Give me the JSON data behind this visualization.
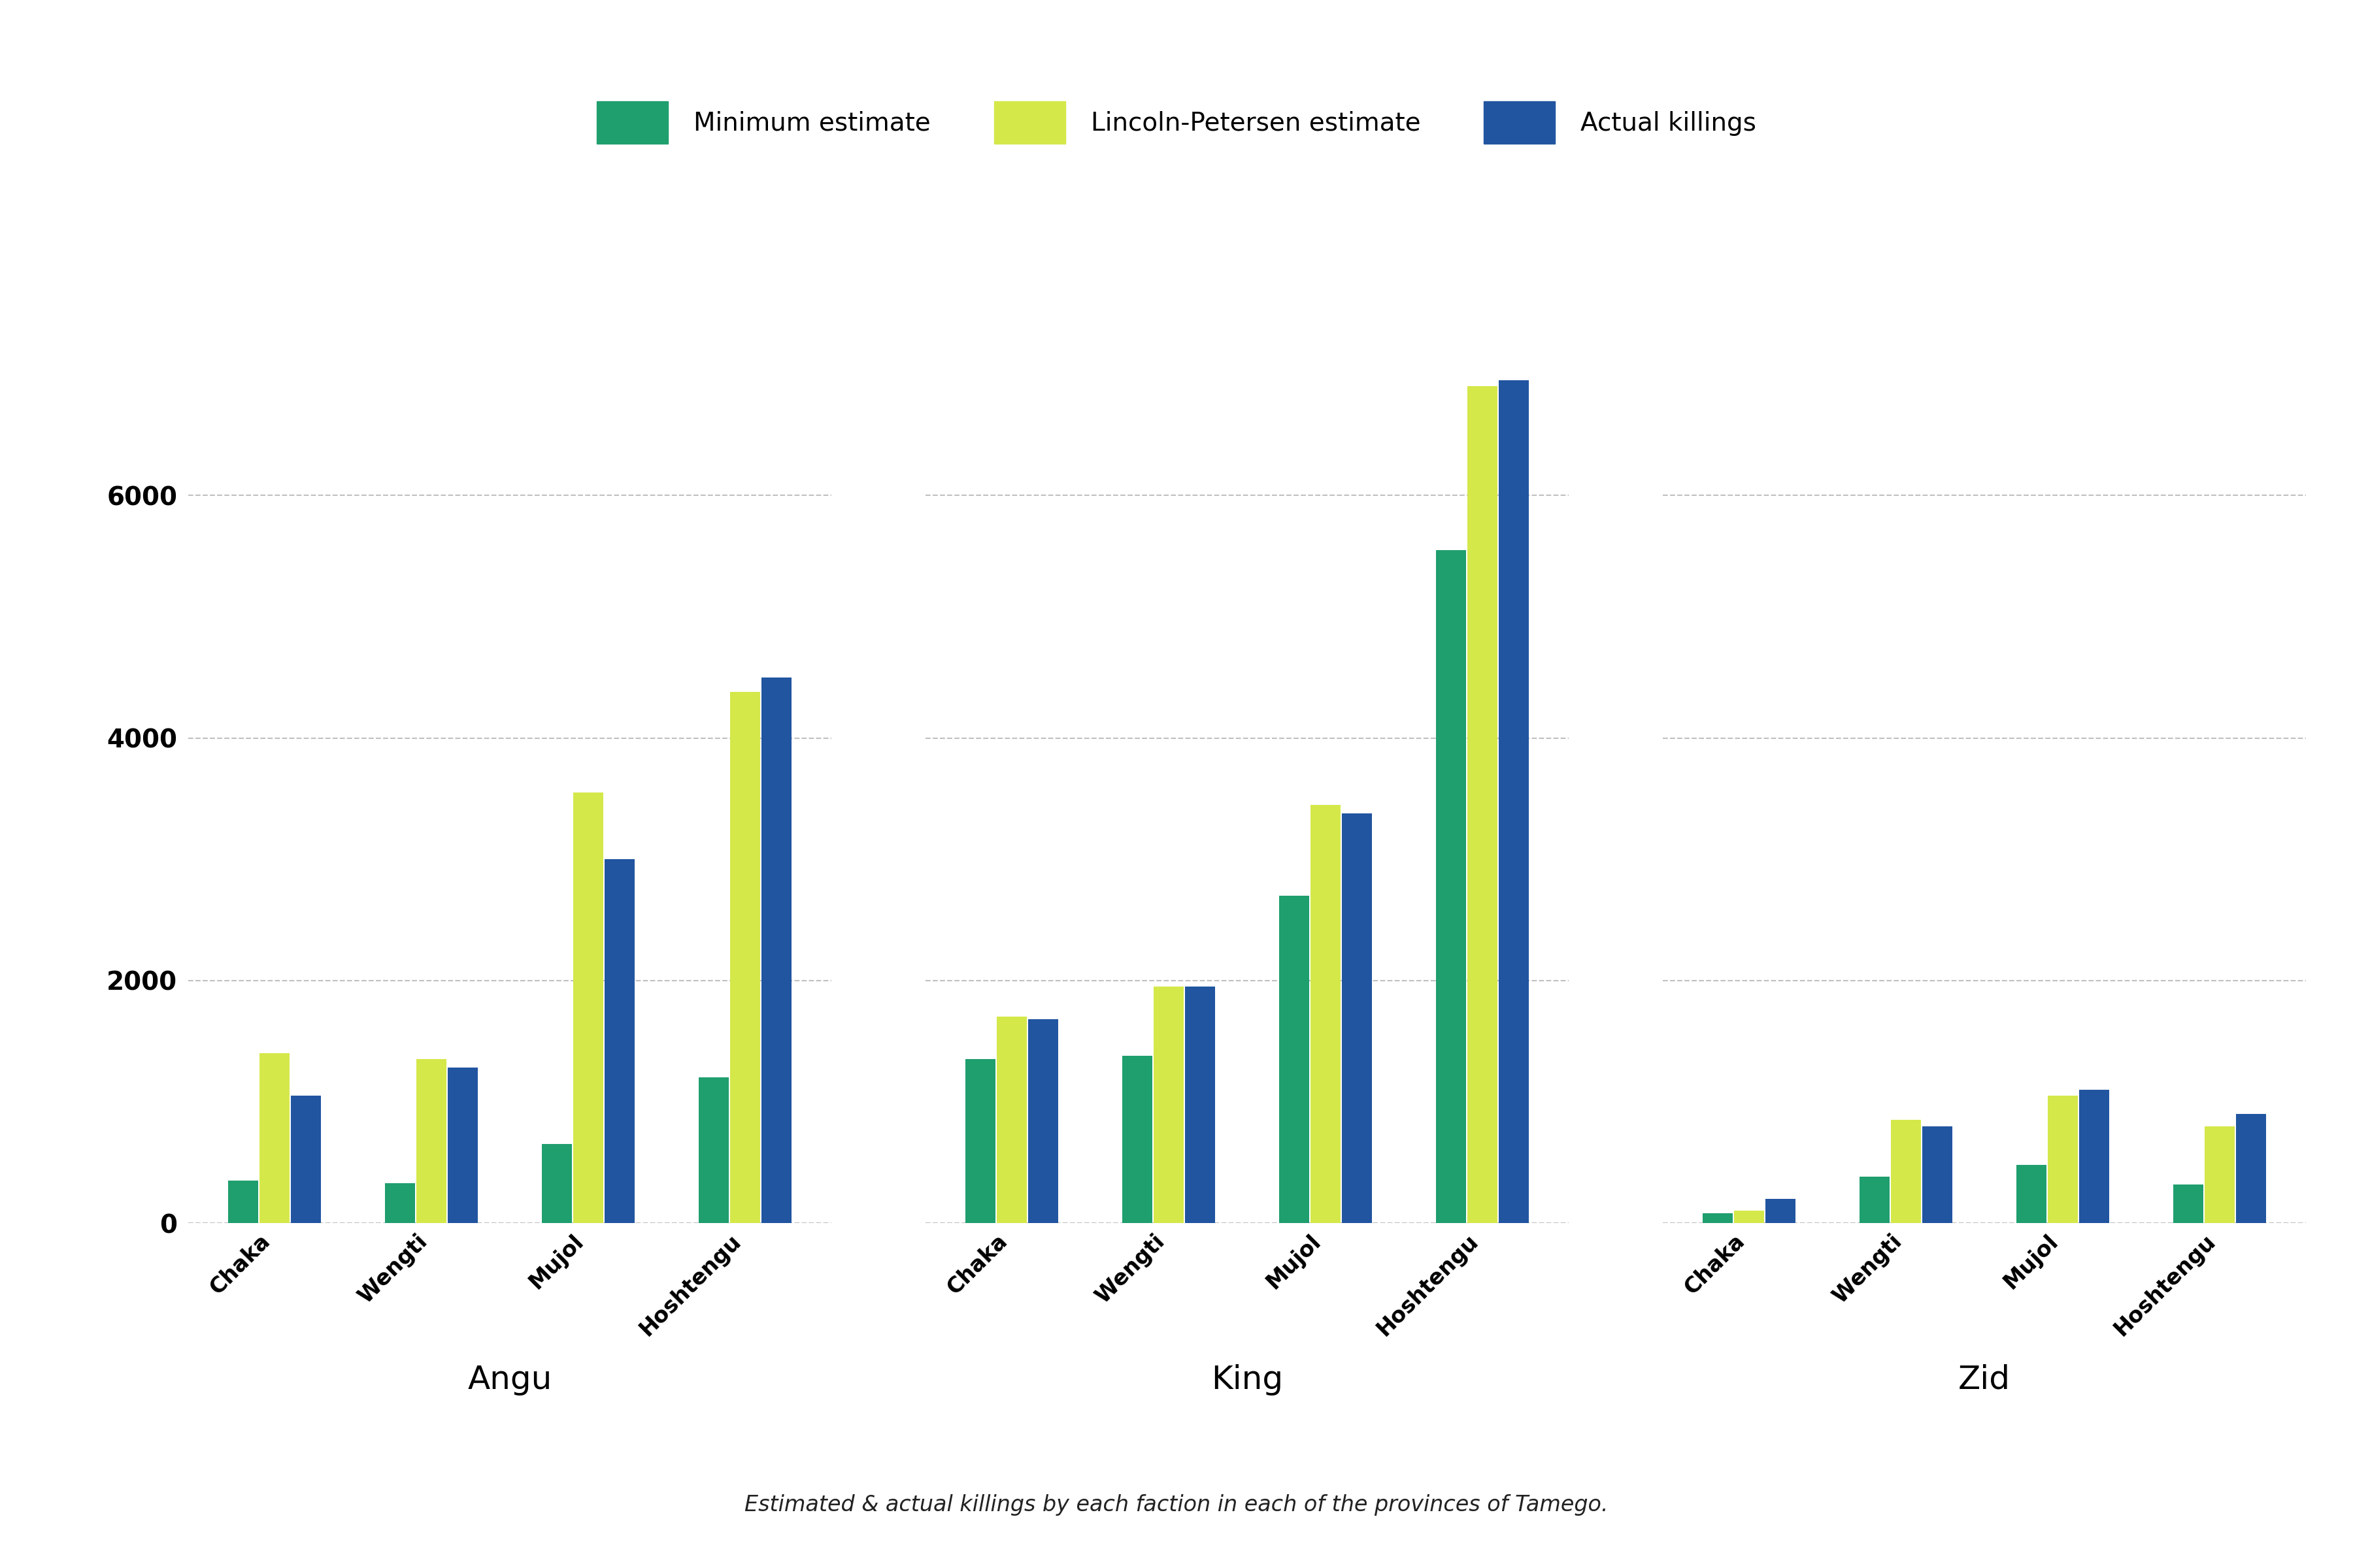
{
  "groups": [
    "Angu",
    "King",
    "Zid"
  ],
  "subgroups": [
    "Chaka",
    "Wengti",
    "Mujol",
    "Hoshtengu"
  ],
  "series": [
    "Minimum estimate",
    "Lincoln-Petersen estimate",
    "Actual killings"
  ],
  "colors": [
    "#1f9e6e",
    "#d4e84a",
    "#2155a0"
  ],
  "values": {
    "Angu": {
      "Chaka": [
        350,
        1400,
        1050
      ],
      "Wengti": [
        330,
        1350,
        1280
      ],
      "Mujol": [
        650,
        3550,
        3000
      ],
      "Hoshtengu": [
        1200,
        4380,
        4500
      ]
    },
    "King": {
      "Chaka": [
        1350,
        1700,
        1680
      ],
      "Wengti": [
        1380,
        1950,
        1950
      ],
      "Mujol": [
        2700,
        3450,
        3380
      ],
      "Hoshtengu": [
        5550,
        6900,
        6950
      ]
    },
    "Zid": {
      "Chaka": [
        80,
        100,
        200
      ],
      "Wengti": [
        380,
        850,
        800
      ],
      "Mujol": [
        480,
        1050,
        1100
      ],
      "Hoshtengu": [
        320,
        800,
        900
      ]
    }
  },
  "ylim": [
    0,
    7500
  ],
  "yticks": [
    0,
    2000,
    4000,
    6000
  ],
  "caption": "Estimated & actual killings by each faction in each of the provinces of Tamego.",
  "background_color": "#ffffff",
  "grid_color": "#c0c0c0",
  "group_label_fontsize": 36,
  "tick_label_fontsize": 24,
  "legend_fontsize": 28,
  "caption_fontsize": 24,
  "ytick_fontsize": 28
}
